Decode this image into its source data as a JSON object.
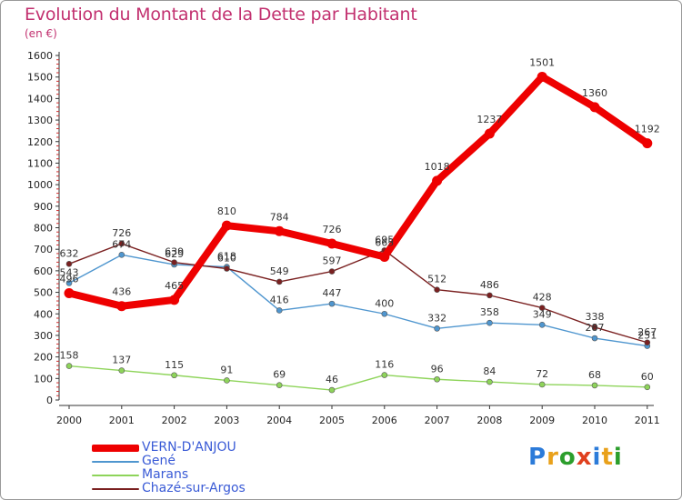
{
  "title": "Evolution du Montant de la Dette par Habitant",
  "subtitle": "(en €)",
  "logo": {
    "text": "Proxiti",
    "colors": [
      "#2c7bd9",
      "#e9a11b",
      "#2c9e2c",
      "#e0401f",
      "#2c7bd9",
      "#e9a11b",
      "#2c9e2c"
    ]
  },
  "chart_data": {
    "type": "line",
    "title": "Evolution du Montant de la Dette par Habitant",
    "ylabel": "(en €)",
    "xlabel": "",
    "x": [
      "2000",
      "2001",
      "2002",
      "2003",
      "2004",
      "2005",
      "2006",
      "2007",
      "2008",
      "2009",
      "2010",
      "2011"
    ],
    "ylim": [
      0,
      1600
    ],
    "yticks": [
      "0",
      "100",
      "200",
      "300",
      "400",
      "500",
      "600",
      "700",
      "800",
      "900",
      "1000",
      "1100",
      "1200",
      "1300",
      "1400",
      "1500",
      "1600"
    ],
    "grid": false,
    "legend_position": "bottom-left",
    "series": [
      {
        "name": "VERN-D'ANJOU",
        "color": "#ee0000",
        "width": 8,
        "values": [
          496,
          436,
          465,
          810,
          784,
          726,
          665,
          1018,
          1237,
          1501,
          1360,
          1192
        ],
        "labels": [
          "496",
          "436",
          "465",
          "810",
          "784",
          "726",
          "665",
          "1018",
          "1237",
          "1501",
          "1360",
          "1192"
        ]
      },
      {
        "name": "Gené",
        "color": "#4f96cf",
        "width": 1.4,
        "values": [
          543,
          674,
          629,
          618,
          416,
          447,
          400,
          332,
          358,
          349,
          287,
          251
        ],
        "labels": [
          "543",
          "674",
          "629",
          "618",
          "416",
          "447",
          "400",
          "332",
          "358",
          "349",
          "287",
          "251"
        ]
      },
      {
        "name": "Marans",
        "color": "#8ed45a",
        "width": 1.4,
        "values": [
          158,
          137,
          115,
          91,
          69,
          46,
          116,
          96,
          84,
          72,
          68,
          60
        ],
        "labels": [
          "158",
          "137",
          "115",
          "91",
          "69",
          "46",
          "116",
          "96",
          "84",
          "72",
          "68",
          "60"
        ]
      },
      {
        "name": "Chazé-sur-Argos",
        "color": "#7a2020",
        "width": 1.4,
        "values": [
          632,
          726,
          639,
          610,
          549,
          597,
          695,
          512,
          486,
          428,
          338,
          267
        ],
        "labels": [
          "632",
          "726",
          "639",
          "610",
          "549",
          "597",
          "695",
          "512",
          "486",
          "428",
          "338",
          "267"
        ]
      }
    ]
  }
}
